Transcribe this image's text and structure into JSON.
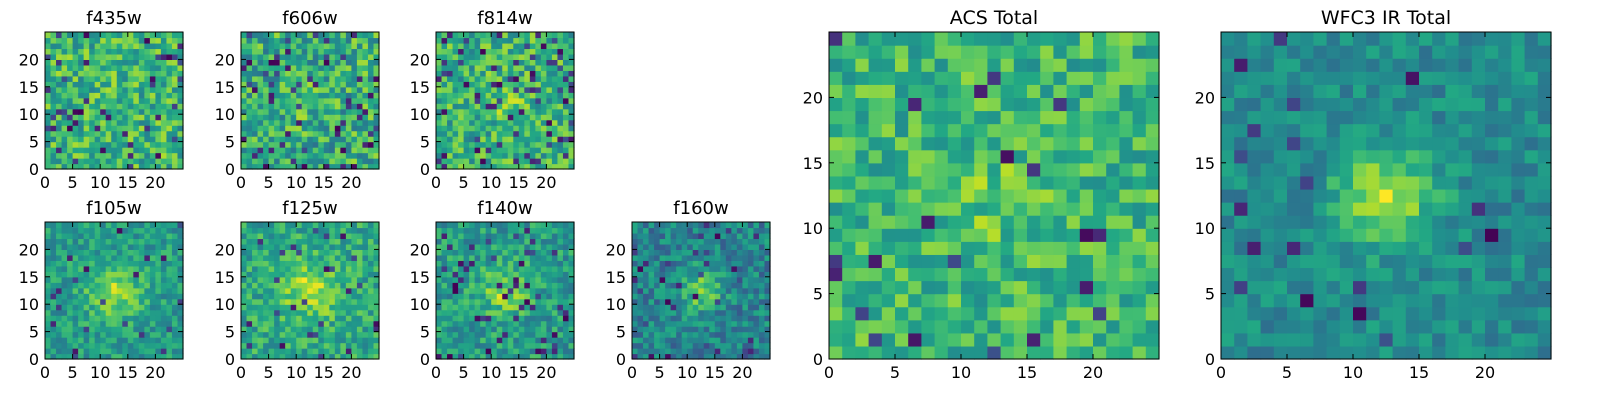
{
  "chart_data": {
    "type": "heatmap",
    "colormap": "viridis",
    "image_size": 25,
    "grid": false,
    "panels": [
      {
        "title": "f435w",
        "xticks": [
          0,
          5,
          10,
          15,
          20
        ],
        "yticks": [
          0,
          5,
          10,
          15,
          20
        ],
        "xlim": [
          0,
          25
        ],
        "ylim": [
          0,
          25
        ],
        "signal": 0.0,
        "mean": 0.66,
        "noise": 0.22,
        "sigma": 2.0,
        "dark_frac": 0.07,
        "seed": 11
      },
      {
        "title": "f606w",
        "xticks": [
          0,
          5,
          10,
          15,
          20
        ],
        "yticks": [
          0,
          5,
          10,
          15,
          20
        ],
        "xlim": [
          0,
          25
        ],
        "ylim": [
          0,
          25
        ],
        "signal": 0.05,
        "mean": 0.62,
        "noise": 0.24,
        "sigma": 2.5,
        "dark_frac": 0.09,
        "seed": 22
      },
      {
        "title": "f814w",
        "xticks": [
          0,
          5,
          10,
          15,
          20
        ],
        "yticks": [
          0,
          5,
          10,
          15,
          20
        ],
        "xlim": [
          0,
          25
        ],
        "ylim": [
          0,
          25
        ],
        "signal": 0.12,
        "mean": 0.64,
        "noise": 0.22,
        "sigma": 2.5,
        "dark_frac": 0.08,
        "seed": 33
      },
      {
        "title": "f105w",
        "xticks": [
          0,
          5,
          10,
          15,
          20
        ],
        "yticks": [
          0,
          5,
          10,
          15,
          20
        ],
        "xlim": [
          0,
          25
        ],
        "ylim": [
          0,
          25
        ],
        "signal": 0.3,
        "mean": 0.55,
        "noise": 0.15,
        "sigma": 3.5,
        "dark_frac": 0.04,
        "seed": 44
      },
      {
        "title": "f125w",
        "xticks": [
          0,
          5,
          10,
          15,
          20
        ],
        "yticks": [
          0,
          5,
          10,
          15,
          20
        ],
        "xlim": [
          0,
          25
        ],
        "ylim": [
          0,
          25
        ],
        "signal": 0.3,
        "mean": 0.6,
        "noise": 0.17,
        "sigma": 3.5,
        "dark_frac": 0.04,
        "seed": 55
      },
      {
        "title": "f140w",
        "xticks": [
          0,
          5,
          10,
          15,
          20
        ],
        "yticks": [
          0,
          5,
          10,
          15,
          20
        ],
        "xlim": [
          0,
          25
        ],
        "ylim": [
          0,
          25
        ],
        "signal": 0.28,
        "mean": 0.55,
        "noise": 0.17,
        "sigma": 3.0,
        "dark_frac": 0.05,
        "seed": 66
      },
      {
        "title": "f160w",
        "xticks": [
          0,
          5,
          10,
          15,
          20
        ],
        "yticks": [
          0,
          5,
          10,
          15,
          20
        ],
        "xlim": [
          0,
          25
        ],
        "ylim": [
          0,
          25
        ],
        "signal": 0.35,
        "mean": 0.45,
        "noise": 0.17,
        "sigma": 2.5,
        "dark_frac": 0.06,
        "seed": 77
      },
      {
        "title": "ACS Total",
        "xticks": [
          0,
          5,
          10,
          15,
          20
        ],
        "yticks": [
          0,
          5,
          10,
          15,
          20
        ],
        "xlim": [
          0,
          25
        ],
        "ylim": [
          0,
          25
        ],
        "signal": 0.08,
        "mean": 0.66,
        "noise": 0.18,
        "sigma": 3.0,
        "dark_frac": 0.03,
        "seed": 88
      },
      {
        "title": "WFC3 IR Total",
        "xticks": [
          0,
          5,
          10,
          15,
          20
        ],
        "yticks": [
          0,
          5,
          10,
          15,
          20
        ],
        "xlim": [
          0,
          25
        ],
        "ylim": [
          0,
          25
        ],
        "signal": 0.42,
        "mean": 0.48,
        "noise": 0.12,
        "sigma": 2.5,
        "dark_frac": 0.03,
        "seed": 99
      }
    ]
  }
}
